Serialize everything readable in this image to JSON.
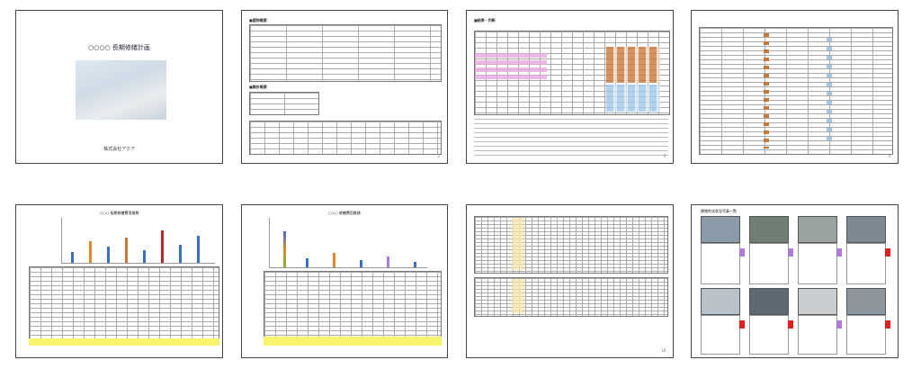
{
  "pages": [
    {
      "id": "p1",
      "title": "○○○○ 長期修繕計画",
      "footer": "株式会社アクア"
    },
    {
      "id": "p2",
      "headings": [
        "■建物概要",
        "■集計概要"
      ],
      "page_number": "2"
    },
    {
      "id": "p3",
      "heading": "■結果・判断",
      "page_number": "3"
    },
    {
      "id": "p4",
      "page_number": "4"
    },
    {
      "id": "p5",
      "chart_title": "○○○ 長期修繕費用推移"
    },
    {
      "id": "p6",
      "chart_title": "○○○ 修繕費用推移"
    },
    {
      "id": "p7",
      "page_number": "18"
    },
    {
      "id": "p8",
      "title": "建物劣化状況写真一覧"
    }
  ],
  "colors": {
    "accent_orange": "#c8793a",
    "accent_pink": "#e8a8e0",
    "highlight_yellow": "#f7f36a",
    "accent_red": "#e02020",
    "accent_purple": "#b07ad8"
  }
}
